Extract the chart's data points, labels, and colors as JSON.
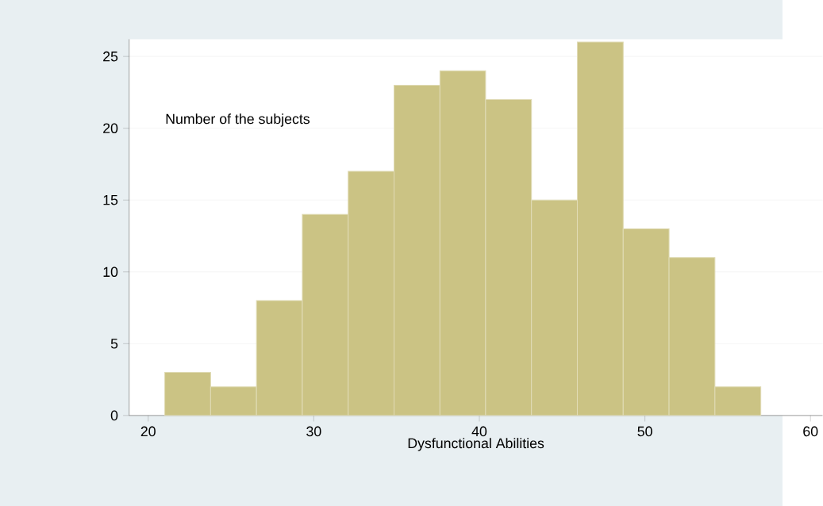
{
  "chart_data": {
    "type": "histogram",
    "xlabel": "Dysfunctional Abilities",
    "annotations": [
      "Number of the subjects"
    ],
    "bins": [
      21,
      23.77,
      26.54,
      29.31,
      32.08,
      34.85,
      37.62,
      40.38,
      43.15,
      45.92,
      48.69,
      51.46,
      54.23,
      57
    ],
    "values": [
      3,
      2,
      8,
      14,
      17,
      23,
      24,
      22,
      15,
      26,
      13,
      11,
      2
    ],
    "color": "#cbc384",
    "xlim": [
      18.85,
      60.73
    ],
    "ylim": [
      0,
      26.2
    ],
    "xticks": [
      20,
      30,
      40,
      50,
      60
    ],
    "yticks": [
      0,
      5,
      10,
      15,
      20,
      25
    ],
    "grid": "y"
  }
}
